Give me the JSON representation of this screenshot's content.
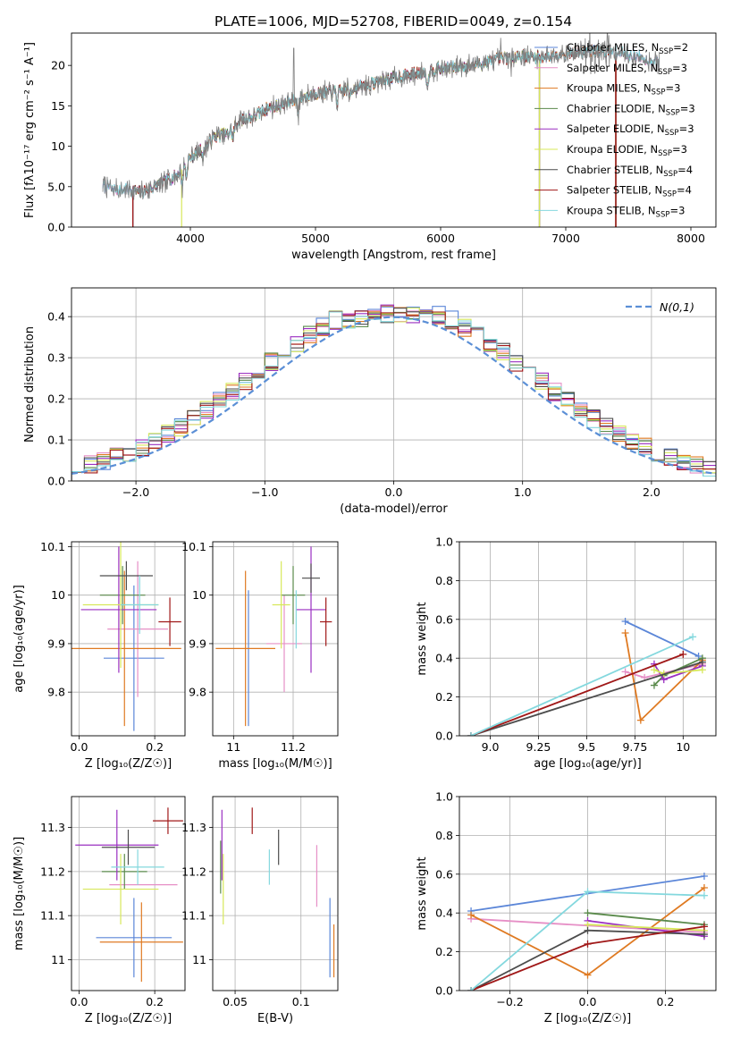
{
  "figure": {
    "title": "PLATE=1006, MJD=52708, FIBERID=0049, z=0.154"
  },
  "series_styles": [
    {
      "name": "Chabrier MILES",
      "nssp": "2",
      "color": "#5b86d8"
    },
    {
      "name": "Salpeter MILES",
      "nssp": "3",
      "color": "#e68fc6"
    },
    {
      "name": "Kroupa MILES",
      "nssp": "3",
      "color": "#df7a22"
    },
    {
      "name": "Chabrier ELODIE",
      "nssp": "3",
      "color": "#5a8a4b"
    },
    {
      "name": "Salpeter ELODIE",
      "nssp": "3",
      "color": "#9a2fc1"
    },
    {
      "name": "Kroupa ELODIE",
      "nssp": "3",
      "color": "#d7e85a"
    },
    {
      "name": "Chabrier STELIB",
      "nssp": "4",
      "color": "#4d4d4d"
    },
    {
      "name": "Salpeter STELIB",
      "nssp": "4",
      "color": "#a01818"
    },
    {
      "name": "Kroupa STELIB",
      "nssp": "3",
      "color": "#84d8de"
    }
  ],
  "chart_data": [
    {
      "id": "spectrum",
      "type": "line",
      "xlabel": "wavelength [Angstrom, rest frame]",
      "ylabel": "Flux [fλ10⁻¹⁷ erg cm⁻² s⁻¹ A⁻¹]",
      "xlim": [
        3050,
        8200
      ],
      "ylim": [
        0,
        24
      ],
      "xticks": [
        4000,
        5000,
        6000,
        7000,
        8000
      ],
      "yticks": [
        0,
        5,
        10,
        15,
        20
      ],
      "grid": false,
      "legend": "upper-right",
      "data_color": "#808080",
      "data_range": [
        3300,
        7750
      ],
      "anchors": [
        [
          3300,
          5.2
        ],
        [
          3400,
          4.6
        ],
        [
          3500,
          4.7
        ],
        [
          3600,
          4.3
        ],
        [
          3700,
          4.9
        ],
        [
          3800,
          5.6
        ],
        [
          3900,
          6.5
        ],
        [
          4000,
          8.6
        ],
        [
          4100,
          9.7
        ],
        [
          4200,
          11.3
        ],
        [
          4300,
          11.5
        ],
        [
          4400,
          13.3
        ],
        [
          4500,
          13.6
        ],
        [
          4600,
          14.6
        ],
        [
          4800,
          15.5
        ],
        [
          5000,
          16.6
        ],
        [
          5200,
          16.8
        ],
        [
          5400,
          17.5
        ],
        [
          5600,
          18.4
        ],
        [
          5800,
          19.0
        ],
        [
          6000,
          19.6
        ],
        [
          6200,
          19.9
        ],
        [
          6400,
          20.5
        ],
        [
          6600,
          21.2
        ],
        [
          6800,
          21.0
        ],
        [
          7000,
          21.5
        ],
        [
          7200,
          21.8
        ],
        [
          7400,
          21.6
        ],
        [
          7600,
          21.0
        ],
        [
          7750,
          20.2
        ]
      ],
      "dips": [
        [
          3934,
          -2.5
        ],
        [
          3968,
          -2.2
        ],
        [
          4102,
          -1.5
        ],
        [
          4340,
          -1.8
        ],
        [
          4861,
          -2.0
        ],
        [
          5175,
          -1.7
        ],
        [
          5270,
          -1.2
        ],
        [
          5893,
          -2.6
        ],
        [
          6563,
          -1.4
        ]
      ],
      "spikes": [
        [
          4825,
          6.0
        ],
        [
          6480,
          2.5
        ]
      ],
      "model_cuts": [
        {
          "series": 0,
          "start": 3300,
          "end": 7750
        },
        {
          "series": 1,
          "start": 3300,
          "end": 7750
        },
        {
          "series": 2,
          "start": 3540,
          "end": 7400
        },
        {
          "series": 3,
          "start": 3540,
          "end": 6790
        },
        {
          "series": 4,
          "start": 3540,
          "end": 6790
        },
        {
          "series": 5,
          "start": 3930,
          "end": 6790
        },
        {
          "series": 6,
          "start": 3540,
          "end": 7400
        },
        {
          "series": 7,
          "start": 3540,
          "end": 7400
        },
        {
          "series": 8,
          "start": 3300,
          "end": 7750
        }
      ]
    },
    {
      "id": "residuals",
      "type": "histogram",
      "xlabel": "(data-model)/error",
      "ylabel": "Normed distribution",
      "xlim": [
        -2.5,
        2.5
      ],
      "ylim": [
        0,
        0.47
      ],
      "xticks": [
        -2,
        -1,
        0,
        1,
        2
      ],
      "yticks": [
        0.0,
        0.1,
        0.2,
        0.3,
        0.4
      ],
      "grid": true,
      "legend": "upper-right",
      "bin_width": 0.1,
      "bin_start": -2.5,
      "reference_label": "N(0,1)",
      "reference_color": "#5b8fd6"
    },
    {
      "id": "age_vs_Z",
      "type": "errorbar",
      "xlabel": "Z [log₁₀(Z/Z☉)]",
      "ylabel": "age  [log₁₀(age/yr)]",
      "xlim": [
        -0.02,
        0.28
      ],
      "ylim": [
        9.71,
        10.11
      ],
      "xticks": [
        0.0,
        0.2
      ],
      "yticks": [
        9.8,
        9.9,
        10.0,
        10.1
      ],
      "grid": true,
      "points": [
        {
          "series": 0,
          "x": 0.145,
          "xerr": 0.08,
          "y": 9.87,
          "yerr": 0.15
        },
        {
          "series": 1,
          "x": 0.155,
          "xerr": 0.08,
          "y": 9.93,
          "yerr": 0.14
        },
        {
          "series": 2,
          "x": 0.12,
          "xerr": 0.15,
          "y": 9.89,
          "yerr": 0.16
        },
        {
          "series": 3,
          "x": 0.115,
          "xerr": 0.06,
          "y": 10.0,
          "yerr": 0.06
        },
        {
          "series": 4,
          "x": 0.105,
          "xerr": 0.1,
          "y": 9.97,
          "yerr": 0.13
        },
        {
          "series": 5,
          "x": 0.11,
          "xerr": 0.1,
          "y": 9.98,
          "yerr": 0.13
        },
        {
          "series": 6,
          "x": 0.125,
          "xerr": 0.07,
          "y": 10.04,
          "yerr": 0.03
        },
        {
          "series": 7,
          "x": 0.24,
          "xerr": 0.03,
          "y": 9.945,
          "yerr": 0.05
        },
        {
          "series": 8,
          "x": 0.16,
          "xerr": 0.05,
          "y": 9.98,
          "yerr": 0.06
        }
      ]
    },
    {
      "id": "age_vs_mass",
      "type": "errorbar",
      "xlabel": "mass [log₁₀(M/M☉)]",
      "ylabel": "",
      "xlim": [
        10.93,
        11.35
      ],
      "ylim": [
        9.71,
        10.11
      ],
      "xticks": [
        11.0,
        11.2
      ],
      "yticks": [
        9.8,
        9.9,
        10.0,
        10.1
      ],
      "grid": true,
      "points": [
        {
          "series": 0,
          "x": 11.05,
          "xerr": 0.0,
          "y": 9.87,
          "yerr": 0.14
        },
        {
          "series": 1,
          "x": 11.17,
          "xerr": 0.06,
          "y": 9.9,
          "yerr": 0.1
        },
        {
          "series": 2,
          "x": 11.04,
          "xerr": 0.1,
          "y": 9.89,
          "yerr": 0.16
        },
        {
          "series": 3,
          "x": 11.2,
          "xerr": 0.04,
          "y": 10.0,
          "yerr": 0.06
        },
        {
          "series": 4,
          "x": 11.26,
          "xerr": 0.05,
          "y": 9.97,
          "yerr": 0.13
        },
        {
          "series": 5,
          "x": 11.16,
          "xerr": 0.03,
          "y": 9.98,
          "yerr": 0.09
        },
        {
          "series": 6,
          "x": 11.26,
          "xerr": 0.03,
          "y": 10.035,
          "yerr": 0.03
        },
        {
          "series": 7,
          "x": 11.31,
          "xerr": 0.02,
          "y": 9.945,
          "yerr": 0.05
        },
        {
          "series": 8,
          "x": 11.21,
          "xerr": 0.0,
          "y": 9.95,
          "yerr": 0.06
        }
      ]
    },
    {
      "id": "weight_vs_age",
      "type": "line",
      "xlabel": "age  [log₁₀(age/yr)]",
      "ylabel": "mass weight",
      "xlim": [
        8.84,
        10.17
      ],
      "ylim": [
        0.0,
        1.0
      ],
      "xticks": [
        9.0,
        9.25,
        9.5,
        9.75,
        10.0
      ],
      "yticks": [
        0.0,
        0.2,
        0.4,
        0.6,
        0.8,
        1.0
      ],
      "grid": true,
      "lines": [
        {
          "series": 0,
          "x": [
            9.7,
            10.08
          ],
          "y": [
            0.59,
            0.41
          ]
        },
        {
          "series": 1,
          "x": [
            9.7,
            9.8,
            10.1
          ],
          "y": [
            0.33,
            0.3,
            0.37
          ]
        },
        {
          "series": 2,
          "x": [
            9.7,
            9.78,
            10.1
          ],
          "y": [
            0.53,
            0.08,
            0.39
          ]
        },
        {
          "series": 3,
          "x": [
            9.85,
            9.9,
            10.1
          ],
          "y": [
            0.26,
            0.31,
            0.4
          ]
        },
        {
          "series": 4,
          "x": [
            9.85,
            9.9,
            10.1
          ],
          "y": [
            0.37,
            0.29,
            0.36
          ]
        },
        {
          "series": 5,
          "x": [
            9.85,
            9.9,
            10.1
          ],
          "y": [
            0.34,
            0.32,
            0.34
          ]
        },
        {
          "series": 6,
          "x": [
            8.9,
            10.1
          ],
          "y": [
            0.0,
            0.38
          ]
        },
        {
          "series": 7,
          "x": [
            8.9,
            10.0
          ],
          "y": [
            0.0,
            0.42
          ]
        },
        {
          "series": 8,
          "x": [
            8.9,
            10.05
          ],
          "y": [
            0.0,
            0.51
          ]
        }
      ]
    },
    {
      "id": "mass_vs_Z",
      "type": "errorbar",
      "xlabel": "Z [log₁₀(Z/Z☉)]",
      "ylabel": "mass [log₁₀(M/M☉)]",
      "xlim": [
        -0.02,
        0.28
      ],
      "ylim": [
        10.93,
        11.37
      ],
      "xticks": [
        0.0,
        0.2
      ],
      "yticks": [
        11.0,
        11.1,
        11.2,
        11.3
      ],
      "grid": true,
      "points": [
        {
          "series": 0,
          "x": 0.145,
          "xerr": 0.1,
          "y": 11.05,
          "yerr": 0.09
        },
        {
          "series": 1,
          "x": 0.17,
          "xerr": 0.09,
          "y": 11.17,
          "yerr": 0.0
        },
        {
          "series": 2,
          "x": 0.165,
          "xerr": 0.11,
          "y": 11.04,
          "yerr": 0.09
        },
        {
          "series": 3,
          "x": 0.12,
          "xerr": 0.06,
          "y": 11.2,
          "yerr": 0.04
        },
        {
          "series": 4,
          "x": 0.1,
          "xerr": 0.11,
          "y": 11.26,
          "yerr": 0.08
        },
        {
          "series": 5,
          "x": 0.11,
          "xerr": 0.1,
          "y": 11.16,
          "yerr": 0.08
        },
        {
          "series": 6,
          "x": 0.13,
          "xerr": 0.07,
          "y": 11.255,
          "yerr": 0.04
        },
        {
          "series": 7,
          "x": 0.235,
          "xerr": 0.04,
          "y": 11.315,
          "yerr": 0.03
        },
        {
          "series": 8,
          "x": 0.155,
          "xerr": 0.07,
          "y": 11.21,
          "yerr": 0.04
        }
      ]
    },
    {
      "id": "mass_vs_EBV",
      "type": "errorbar",
      "xlabel": "E(B-V)",
      "ylabel": "",
      "xlim": [
        0.033,
        0.128
      ],
      "ylim": [
        10.93,
        11.37
      ],
      "xticks": [
        0.05,
        0.1
      ],
      "yticks": [
        11.0,
        11.1,
        11.2,
        11.3
      ],
      "grid": true,
      "points": [
        {
          "series": 0,
          "x": 0.122,
          "xerr": 0.0,
          "y": 11.05,
          "yerr": 0.09
        },
        {
          "series": 1,
          "x": 0.112,
          "xerr": 0.0,
          "y": 11.19,
          "yerr": 0.07
        },
        {
          "series": 2,
          "x": 0.125,
          "xerr": 0.0,
          "y": 11.02,
          "yerr": 0.06
        },
        {
          "series": 3,
          "x": 0.039,
          "xerr": 0.0,
          "y": 11.21,
          "yerr": 0.06
        },
        {
          "series": 4,
          "x": 0.04,
          "xerr": 0.0,
          "y": 11.26,
          "yerr": 0.08
        },
        {
          "series": 5,
          "x": 0.041,
          "xerr": 0.0,
          "y": 11.16,
          "yerr": 0.08
        },
        {
          "series": 6,
          "x": 0.083,
          "xerr": 0.0,
          "y": 11.255,
          "yerr": 0.04
        },
        {
          "series": 7,
          "x": 0.063,
          "xerr": 0.0,
          "y": 11.315,
          "yerr": 0.03
        },
        {
          "series": 8,
          "x": 0.076,
          "xerr": 0.0,
          "y": 11.21,
          "yerr": 0.04
        }
      ]
    },
    {
      "id": "weight_vs_Z",
      "type": "line",
      "xlabel": "Z [log₁₀(Z/Z☉)]",
      "ylabel": "mass weight",
      "xlim": [
        -0.33,
        0.33
      ],
      "ylim": [
        0.0,
        1.0
      ],
      "xticks": [
        -0.2,
        0.0,
        0.2
      ],
      "yticks": [
        0.0,
        0.2,
        0.4,
        0.6,
        0.8,
        1.0
      ],
      "grid": true,
      "lines": [
        {
          "series": 0,
          "x": [
            -0.3,
            0.3
          ],
          "y": [
            0.41,
            0.59
          ]
        },
        {
          "series": 1,
          "x": [
            -0.3,
            0.3
          ],
          "y": [
            0.37,
            0.3
          ]
        },
        {
          "series": 2,
          "x": [
            -0.3,
            0.0,
            0.3
          ],
          "y": [
            0.39,
            0.08,
            0.53
          ]
        },
        {
          "series": 3,
          "x": [
            0.0,
            0.3
          ],
          "y": [
            0.4,
            0.34
          ]
        },
        {
          "series": 4,
          "x": [
            0.0,
            0.3
          ],
          "y": [
            0.36,
            0.28
          ]
        },
        {
          "series": 5,
          "x": [
            0.0,
            0.3
          ],
          "y": [
            0.34,
            0.31
          ]
        },
        {
          "series": 6,
          "x": [
            -0.3,
            0.0,
            0.3
          ],
          "y": [
            0.0,
            0.31,
            0.29
          ]
        },
        {
          "series": 7,
          "x": [
            -0.3,
            0.0,
            0.3
          ],
          "y": [
            0.0,
            0.24,
            0.33
          ]
        },
        {
          "series": 8,
          "x": [
            -0.3,
            0.0,
            0.3
          ],
          "y": [
            0.0,
            0.51,
            0.49
          ]
        }
      ]
    }
  ]
}
